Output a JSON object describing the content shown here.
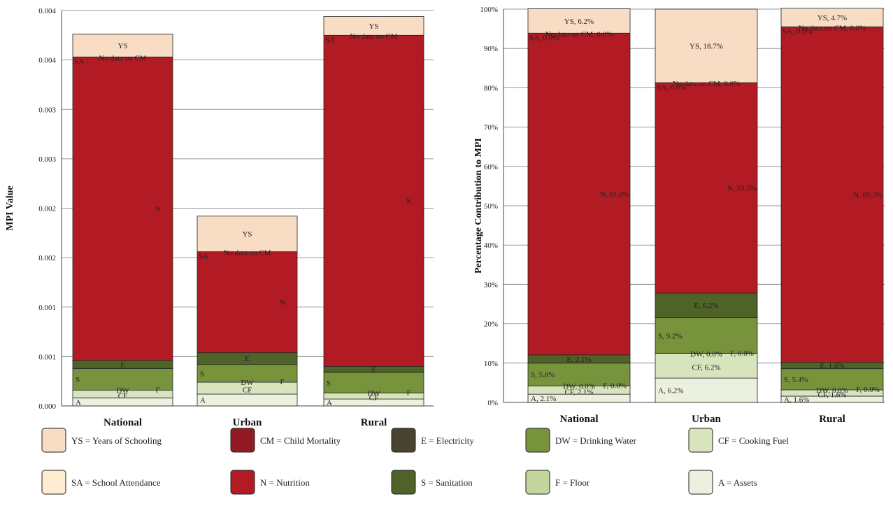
{
  "chart_data": [
    {
      "type": "bar",
      "stacked": true,
      "ylabel": "MPI Value",
      "ylim": [
        0,
        0.004
      ],
      "yticks": [
        "0.000",
        "0.001",
        "0.001",
        "0.002",
        "0.002",
        "0.003",
        "0.003",
        "0.004",
        "0.004"
      ],
      "ytick_values": [
        0,
        0.0005,
        0.001,
        0.0015,
        0.002,
        0.0025,
        0.003,
        0.0035,
        0.004
      ],
      "grid": true,
      "categories": [
        "National",
        "Urban",
        "Rural"
      ],
      "series": [
        {
          "name": "A",
          "color": "#ebf0df",
          "values": [
            8e-05,
            0.00012,
            7e-05
          ],
          "labels": [
            "A",
            "A",
            "A"
          ]
        },
        {
          "name": "CF",
          "color": "#d7e4bd",
          "values": [
            8e-05,
            0.00012,
            6e-05
          ],
          "labels": [
            "CF",
            "CF",
            "CF"
          ]
        },
        {
          "name": "F",
          "color": "#c3d69b",
          "values": [
            0.0,
            0.0,
            0.0
          ],
          "labels": [
            "F",
            "F",
            "F"
          ]
        },
        {
          "name": "DW",
          "color": "#77933c",
          "values": [
            0.0,
            0.0,
            0.0
          ],
          "labels": [
            "DW",
            "DW",
            "DW"
          ]
        },
        {
          "name": "S",
          "color": "#77933c",
          "values": [
            0.00022,
            0.00018,
            0.00021
          ],
          "labels": [
            "S",
            "S",
            "S"
          ]
        },
        {
          "name": "E",
          "color": "#4f6228",
          "values": [
            8e-05,
            0.00012,
            6e-05
          ],
          "labels": [
            "E",
            "E",
            "E"
          ]
        },
        {
          "name": "N",
          "color": "#b31b24",
          "values": [
            0.00307,
            0.00102,
            0.00335
          ],
          "labels": [
            "N",
            "N",
            "N"
          ]
        },
        {
          "name": "CM",
          "color": "#931a22",
          "values": [
            0.0,
            0.0,
            0.0
          ],
          "labels": [
            "No data on CM",
            "No data on CM",
            "No data on CM"
          ]
        },
        {
          "name": "SA",
          "color": "#fdeccf",
          "values": [
            0.0,
            0.0,
            0.0
          ],
          "labels": [
            "SA",
            "SA",
            "SA"
          ]
        },
        {
          "name": "YS",
          "color": "#f8dcc4",
          "values": [
            0.00023,
            0.00036,
            0.00019
          ],
          "labels": [
            "YS",
            "YS",
            "YS"
          ]
        }
      ]
    },
    {
      "type": "bar",
      "stacked": true,
      "ylabel": "Percentage Contribution to MPI",
      "ylim": [
        0,
        100
      ],
      "yticks": [
        "0%",
        "10%",
        "20%",
        "30%",
        "40%",
        "50%",
        "60%",
        "70%",
        "80%",
        "90%",
        "100%"
      ],
      "ytick_values": [
        0,
        10,
        20,
        30,
        40,
        50,
        60,
        70,
        80,
        90,
        100
      ],
      "grid": true,
      "categories": [
        "National",
        "Urban",
        "Rural"
      ],
      "series": [
        {
          "name": "A",
          "color": "#ebf0df",
          "values": [
            2.1,
            6.2,
            1.6
          ],
          "labels": [
            "A, 2.1%",
            "A, 6.2%",
            "A, 1.6%"
          ]
        },
        {
          "name": "CF",
          "color": "#d7e4bd",
          "values": [
            2.1,
            6.2,
            1.6
          ],
          "labels": [
            "CF, 2.1%",
            "CF, 6.2%",
            "CF, 1.6%"
          ]
        },
        {
          "name": "F",
          "color": "#c3d69b",
          "values": [
            0.0,
            0.0,
            0.0
          ],
          "labels": [
            "F, 0.0%",
            "F, 0.0%",
            "F, 0.0%"
          ]
        },
        {
          "name": "DW",
          "color": "#77933c",
          "values": [
            0.0,
            0.0,
            0.0
          ],
          "labels": [
            "DW, 0.0%",
            "DW, 0.0%",
            "DW, 0.0%"
          ]
        },
        {
          "name": "S",
          "color": "#77933c",
          "values": [
            5.8,
            9.2,
            5.4
          ],
          "labels": [
            "S, 5.8%",
            "S, 9.2%",
            "S, 5.4%"
          ]
        },
        {
          "name": "E",
          "color": "#4f6228",
          "values": [
            2.1,
            6.2,
            1.6
          ],
          "labels": [
            "E, 2.1%",
            "E, 6.2%",
            "E, 1.6%"
          ]
        },
        {
          "name": "N",
          "color": "#b31b24",
          "values": [
            81.8,
            53.5,
            85.3
          ],
          "labels": [
            "N, 81.8%",
            "N, 53.5%",
            "N, 85.3%"
          ]
        },
        {
          "name": "CM",
          "color": "#931a22",
          "values": [
            0.0,
            0.0,
            0.0
          ],
          "labels": [
            "No data on CM, 0.0%",
            "No data on CM, 0.0%",
            "No data on CM, 0.0%"
          ]
        },
        {
          "name": "SA",
          "color": "#fdeccf",
          "values": [
            0.0,
            0.0,
            0.0
          ],
          "labels": [
            "SA, 0.0%",
            "SA, 0.0%",
            "SA, 0.0%"
          ]
        },
        {
          "name": "YS",
          "color": "#f8dcc4",
          "values": [
            6.2,
            18.7,
            4.7
          ],
          "labels": [
            "YS, 6.2%",
            "YS, 18.7%",
            "YS, 4.7%"
          ]
        }
      ]
    }
  ],
  "legend": [
    {
      "key": "ys",
      "label": "YS = Years of Schooling",
      "color": "#f8dcc4"
    },
    {
      "key": "cm",
      "label": "CM = Child Mortality",
      "color": "#931a22"
    },
    {
      "key": "e",
      "label": "E = Electricity",
      "color": "#4a4330"
    },
    {
      "key": "dw",
      "label": "DW = Drinking Water",
      "color": "#77933c"
    },
    {
      "key": "cf",
      "label": "CF = Cooking Fuel",
      "color": "#d7e4bd"
    },
    {
      "key": "sa",
      "label": "SA = School Attendance",
      "color": "#fdeccf"
    },
    {
      "key": "n",
      "label": "N = Nutrition",
      "color": "#b31b24"
    },
    {
      "key": "s",
      "label": "S = Sanitation",
      "color": "#4f6228"
    },
    {
      "key": "f",
      "label": "F = Floor",
      "color": "#c3d69b"
    },
    {
      "key": "a",
      "label": "A = Assets",
      "color": "#ebf0df"
    }
  ]
}
